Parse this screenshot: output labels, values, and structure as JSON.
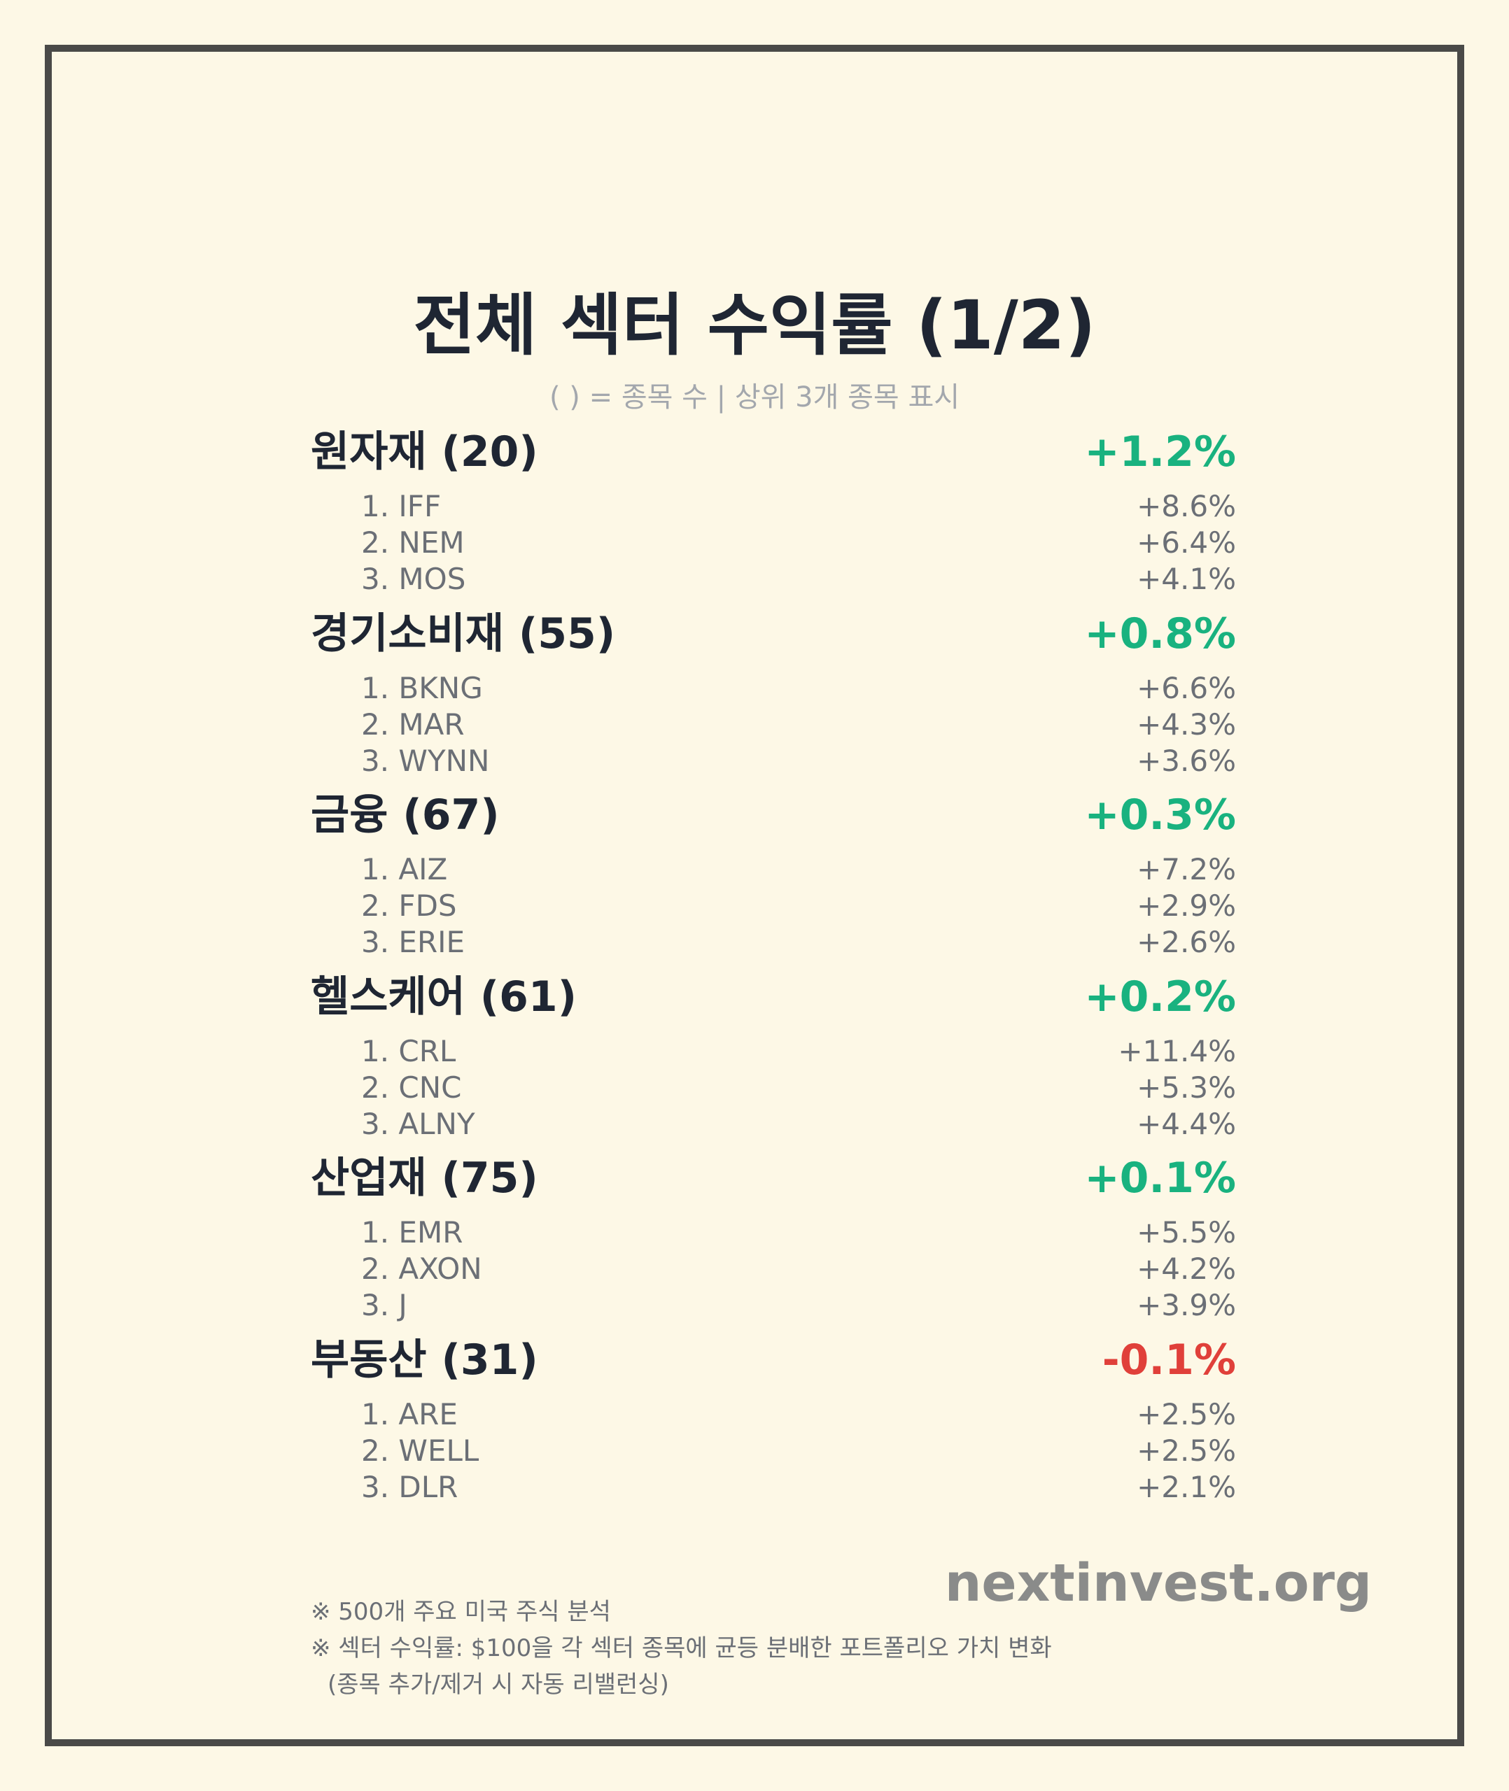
{
  "header": {
    "title": "전체 섹터 수익률 (1/2)",
    "subtitle": "( ) = 종목 수 | 상위 3개 종목 표시"
  },
  "colors": {
    "positive": "#19b27f",
    "negative": "#e0403a"
  },
  "sectors": [
    {
      "name": "원자재 (20)",
      "return": "+1.2%",
      "direction": "positive",
      "stocks": [
        {
          "name": "1. IFF",
          "return": "+8.6%"
        },
        {
          "name": "2. NEM",
          "return": "+6.4%"
        },
        {
          "name": "3. MOS",
          "return": "+4.1%"
        }
      ]
    },
    {
      "name": "경기소비재 (55)",
      "return": "+0.8%",
      "direction": "positive",
      "stocks": [
        {
          "name": "1. BKNG",
          "return": "+6.6%"
        },
        {
          "name": "2. MAR",
          "return": "+4.3%"
        },
        {
          "name": "3. WYNN",
          "return": "+3.6%"
        }
      ]
    },
    {
      "name": "금융 (67)",
      "return": "+0.3%",
      "direction": "positive",
      "stocks": [
        {
          "name": "1. AIZ",
          "return": "+7.2%"
        },
        {
          "name": "2. FDS",
          "return": "+2.9%"
        },
        {
          "name": "3. ERIE",
          "return": "+2.6%"
        }
      ]
    },
    {
      "name": "헬스케어 (61)",
      "return": "+0.2%",
      "direction": "positive",
      "stocks": [
        {
          "name": "1. CRL",
          "return": "+11.4%"
        },
        {
          "name": "2. CNC",
          "return": "+5.3%"
        },
        {
          "name": "3. ALNY",
          "return": "+4.4%"
        }
      ]
    },
    {
      "name": "산업재 (75)",
      "return": "+0.1%",
      "direction": "positive",
      "stocks": [
        {
          "name": "1. EMR",
          "return": "+5.5%"
        },
        {
          "name": "2. AXON",
          "return": "+4.2%"
        },
        {
          "name": "3. J",
          "return": "+3.9%"
        }
      ]
    },
    {
      "name": "부동산 (31)",
      "return": "-0.1%",
      "direction": "negative",
      "stocks": [
        {
          "name": "1. ARE",
          "return": "+2.5%"
        },
        {
          "name": "2. WELL",
          "return": "+2.5%"
        },
        {
          "name": "3. DLR",
          "return": "+2.1%"
        }
      ]
    }
  ],
  "footer": {
    "brand": "nextinvest.org",
    "notes": [
      "※ 500개 주요 미국 주식 분석",
      "※ 섹터 수익률: $100을 각 섹터 종목에 균등 분배한 포트폴리오 가치 변화",
      "(종목 추가/제거 시 자동 리밸런싱)"
    ]
  }
}
